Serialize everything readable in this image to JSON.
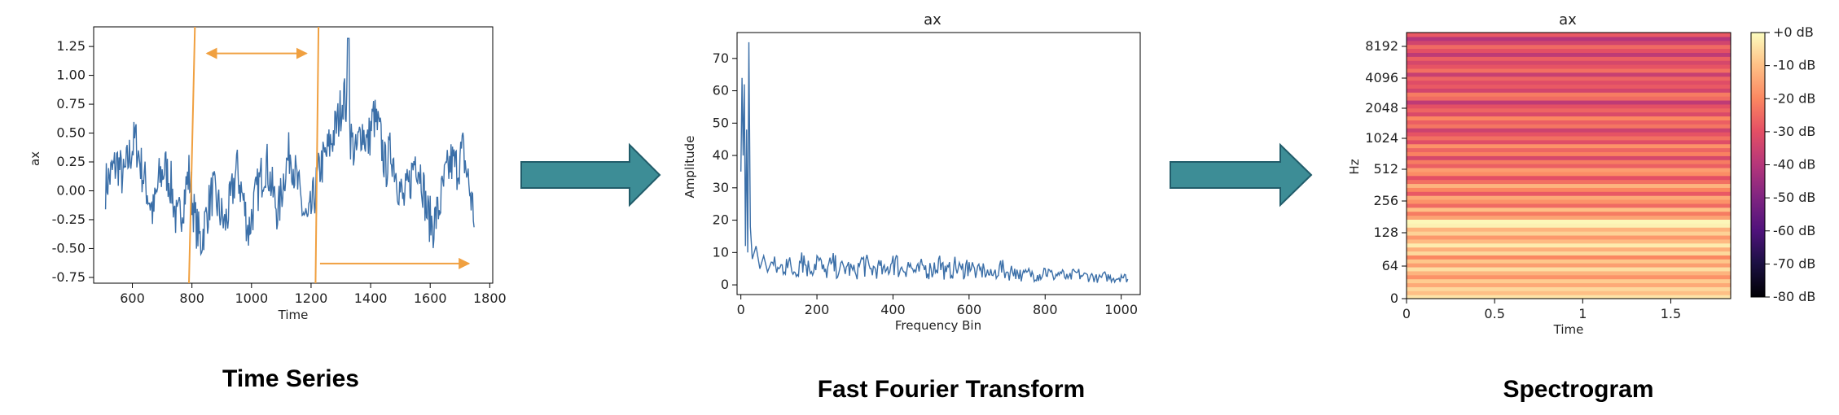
{
  "colors": {
    "series": "#3b6fa8",
    "marker": "#f0a040",
    "arrow_fill": "#3d8d96",
    "arrow_stroke": "#215c6a"
  },
  "captions": {
    "left": "Time Series",
    "middle": "Fast Fourier Transform",
    "right": "Spectrogram"
  },
  "chart_data": [
    {
      "type": "line",
      "title": "",
      "xlabel": "Time",
      "ylabel": "ax",
      "xlim": [
        470,
        1810
      ],
      "ylim": [
        -0.8,
        1.42
      ],
      "x_ticks": [
        "600",
        "800",
        "1000",
        "1200",
        "1400",
        "1600",
        "1800"
      ],
      "x_tick_values": [
        600,
        800,
        1000,
        1200,
        1400,
        1600,
        1800
      ],
      "y_ticks": [
        "1.25",
        "1.00",
        "0.75",
        "0.50",
        "0.25",
        "0.00",
        "-0.25",
        "-0.50",
        "-0.75"
      ],
      "y_tick_values": [
        1.25,
        1.0,
        0.75,
        0.5,
        0.25,
        0.0,
        -0.25,
        -0.5,
        -0.75
      ],
      "x_range": [
        510,
        1750
      ],
      "window_lines": [
        [
          810,
          790
        ],
        [
          1225,
          1215
        ]
      ],
      "window_arrow": [
        850,
        1185,
        1.19
      ],
      "slide_arrow": [
        1230,
        1730,
        -0.63
      ],
      "series": [
        {
          "x": [
            510,
            530,
            550,
            570,
            590,
            610,
            630,
            650,
            670,
            690,
            710,
            730,
            750,
            770,
            790,
            810,
            830,
            850,
            870,
            890,
            910,
            930,
            950,
            970,
            990,
            1010,
            1030,
            1050,
            1070,
            1090,
            1110,
            1130,
            1150,
            1170,
            1190,
            1210,
            1230,
            1250,
            1270,
            1290,
            1310,
            1330,
            1350,
            1370,
            1390,
            1410,
            1430,
            1450,
            1470,
            1490,
            1510,
            1530,
            1550,
            1570,
            1590,
            1610,
            1630,
            1650,
            1670,
            1690,
            1710,
            1730,
            1750
          ],
          "values": [
            0.05,
            0.15,
            0.25,
            0.1,
            0.3,
            0.45,
            0.2,
            0.0,
            -0.2,
            0.1,
            0.2,
            0.05,
            -0.3,
            -0.1,
            0.15,
            -0.25,
            -0.45,
            -0.2,
            0.0,
            -0.15,
            -0.3,
            -0.1,
            0.2,
            -0.05,
            -0.35,
            -0.1,
            0.1,
            0.25,
            0.0,
            -0.2,
            0.15,
            0.35,
            0.1,
            -0.15,
            -0.3,
            -0.05,
            0.2,
            0.3,
            0.45,
            0.6,
            0.85,
            0.5,
            0.3,
            0.55,
            0.4,
            0.65,
            0.5,
            0.2,
            0.35,
            0.1,
            -0.1,
            0.05,
            0.3,
            0.15,
            -0.2,
            -0.3,
            -0.15,
            0.1,
            0.25,
            0.2,
            0.35,
            0.05,
            -0.25
          ]
        }
      ]
    },
    {
      "type": "line",
      "title": "ax",
      "xlabel": "Frequency Bin",
      "ylabel": "Amplitude",
      "xlim": [
        -10,
        1050
      ],
      "ylim": [
        -3,
        78
      ],
      "x_ticks": [
        "0",
        "200",
        "400",
        "600",
        "800",
        "1000"
      ],
      "x_tick_values": [
        0,
        200,
        400,
        600,
        800,
        1000
      ],
      "y_ticks": [
        "0",
        "10",
        "20",
        "30",
        "40",
        "50",
        "60",
        "70"
      ],
      "y_tick_values": [
        0,
        10,
        20,
        30,
        40,
        50,
        60,
        70
      ],
      "series": [
        {
          "x": [
            0,
            3,
            6,
            9,
            12,
            15,
            18,
            21,
            25,
            30,
            40,
            50,
            60,
            70,
            80,
            100,
            120,
            140,
            160,
            180,
            200,
            220,
            240,
            260,
            280,
            300,
            320,
            340,
            360,
            380,
            400,
            420,
            440,
            460,
            480,
            500,
            520,
            540,
            560,
            580,
            600,
            620,
            640,
            660,
            680,
            700,
            720,
            740,
            760,
            780,
            800,
            820,
            840,
            860,
            880,
            900,
            920,
            940,
            960,
            980,
            1000,
            1020
          ],
          "values": [
            35,
            64,
            40,
            62,
            12,
            48,
            10,
            75,
            18,
            8,
            12,
            5,
            9,
            4,
            7,
            5,
            8,
            4,
            10,
            5,
            9,
            4,
            7,
            5,
            6,
            4,
            8,
            5,
            6,
            4,
            9,
            5,
            7,
            4,
            6,
            5,
            8,
            4,
            6,
            5,
            7,
            4,
            5,
            3,
            6,
            4,
            5,
            3,
            4,
            3,
            5,
            3,
            4,
            2,
            4,
            3,
            3,
            2,
            3,
            2,
            3,
            2
          ]
        }
      ]
    },
    {
      "type": "heatmap",
      "title": "ax",
      "xlabel": "Time",
      "ylabel": "Hz",
      "xlim": [
        0,
        1.84
      ],
      "x_ticks": [
        "0",
        "0.5",
        "1",
        "1.5"
      ],
      "x_tick_values": [
        0,
        0.5,
        1,
        1.5
      ],
      "y_ticks": [
        "0",
        "64",
        "128",
        "256",
        "512",
        "1024",
        "2048",
        "4096",
        "8192"
      ],
      "y_tick_values": [
        0,
        64,
        128,
        256,
        512,
        1024,
        2048,
        4096,
        8192
      ],
      "colorbar_ticks": [
        "+0 dB",
        "-10 dB",
        "-20 dB",
        "-30 dB",
        "-40 dB",
        "-50 dB",
        "-60 dB",
        "-70 dB",
        "-80 dB"
      ],
      "colorbar_values": [
        0,
        -10,
        -20,
        -30,
        -40,
        -50,
        -60,
        -70,
        -80
      ],
      "band_levels_db": [
        -4,
        -10,
        -6,
        -14,
        -8,
        -18,
        -12,
        -5,
        -16,
        -9,
        -20,
        -6,
        -13,
        -3,
        -11,
        -17,
        -7,
        -12,
        -2,
        -1,
        -15,
        -22,
        -10,
        -25,
        -18,
        -14,
        -28,
        -20,
        -12,
        -24,
        -30,
        -19,
        -16,
        -27,
        -22,
        -33,
        -21,
        -26,
        -18,
        -31,
        -24,
        -29,
        -35,
        -23,
        -27,
        -20,
        -32,
        -26,
        -30,
        -38,
        -25,
        -22,
        -34,
        -28,
        -31,
        -26,
        -36,
        -24,
        -29,
        -33,
        -27,
        -38,
        -30,
        -25,
        -34,
        -40,
        -28
      ]
    }
  ]
}
